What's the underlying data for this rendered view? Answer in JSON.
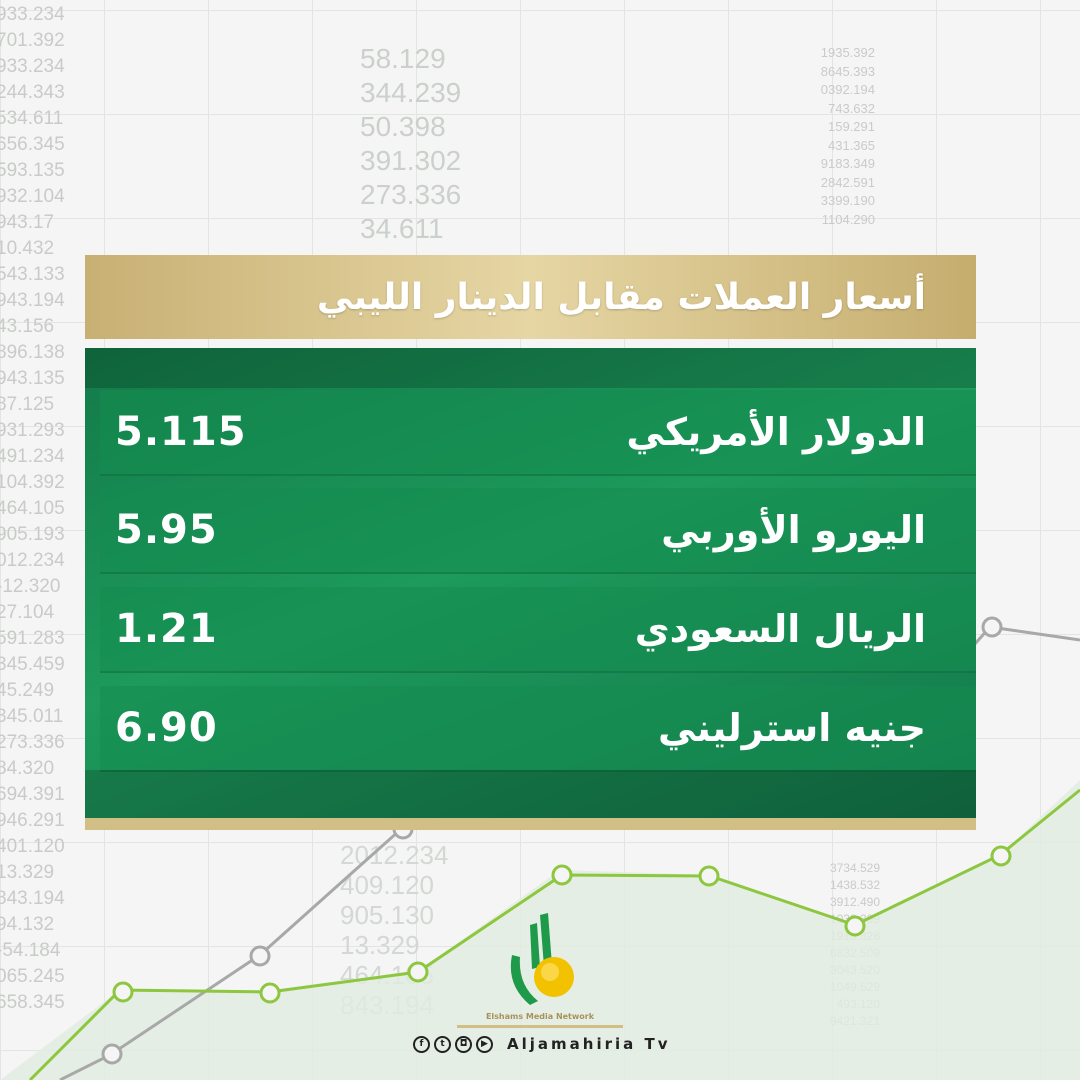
{
  "title": "أسعار العملات مقابل الدينار الليبي",
  "rates": [
    {
      "currency": "الدولار الأمريكي",
      "value": "5.115"
    },
    {
      "currency": "اليورو الأوربي",
      "value": "5.95"
    },
    {
      "currency": "الريال السعودي",
      "value": "1.21"
    },
    {
      "currency": "جنيه استرليني",
      "value": "6.90"
    }
  ],
  "background_numbers": {
    "left": [
      "933.234",
      "701.392",
      "933.234",
      "244.343",
      "534.611",
      "656.345",
      "593.135",
      "932.104",
      "943.17",
      "10.432",
      "543.133",
      "943.194",
      "43.156",
      "896.138",
      "943.135",
      "87.125",
      "931.293",
      "491.234",
      "104.392",
      "464.105",
      "905.193",
      "012.234",
      "-12.320",
      "27.104",
      "591.283",
      "345.459",
      "45.249",
      "345.011",
      "273.336",
      "84.320",
      "694.391",
      "946.291",
      "401.120",
      "13.329",
      "843.194",
      "94.132",
      "-54.184",
      "065.245",
      "658.345"
    ],
    "middle": [
      "58.129",
      "344.239",
      "50.398",
      "391.302",
      "273.336",
      "34.611"
    ],
    "right": [
      "1935.392",
      "8645.393",
      "0392.194",
      "743.632",
      "159.291",
      "431.365",
      "9183.349",
      "2842.591",
      "3399.190",
      "1104.290"
    ],
    "lower_middle": [
      "2012.234",
      "409.120",
      "905.130",
      "13.329",
      "464.105",
      "843.194"
    ],
    "lower_right": [
      "3734.529",
      "1438.532",
      "3912.490",
      "1033.399",
      "1918.328",
      "6832.509",
      "3043.520",
      "1049.529",
      "493.120",
      "9421.321"
    ]
  },
  "brand": {
    "network": "Elshams Media Network",
    "channel": "Aljamahiria Tv"
  },
  "social_icons": [
    "facebook-icon",
    "twitter-icon",
    "instagram-icon",
    "youtube-icon"
  ],
  "colors": {
    "gold": "#d2bf86",
    "green": "#1a8a55",
    "line_green": "#8dc63f",
    "line_grey": "#a8a8a8"
  }
}
